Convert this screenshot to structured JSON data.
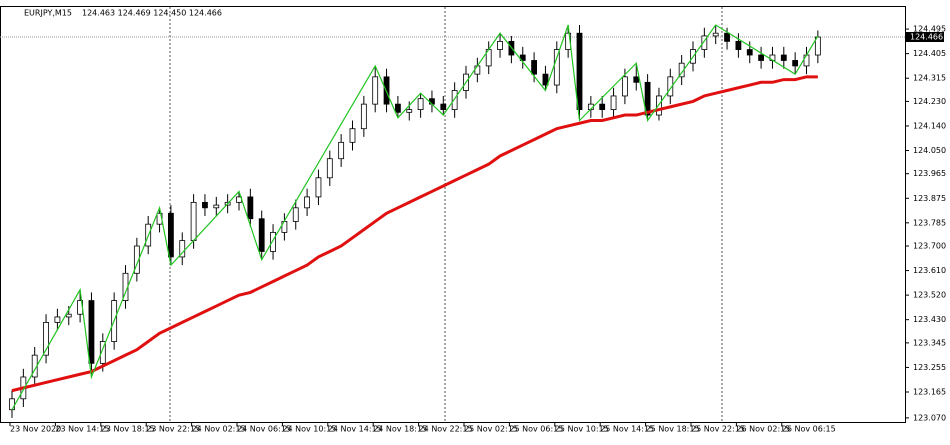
{
  "chart_data": {
    "type": "candlestick",
    "title": "EURJPY,M15",
    "subtitle": "124.463 124.469 124.450 124.466",
    "x_labels": [
      "23 Nov 2020",
      "23 Nov 14:15",
      "23 Nov 18:15",
      "23 Nov 22:15",
      "24 Nov 02:15",
      "24 Nov 06:15",
      "24 Nov 10:15",
      "24 Nov 14:15",
      "24 Nov 18:15",
      "24 Nov 22:15",
      "25 Nov 02:15",
      "25 Nov 06:15",
      "25 Nov 10:15",
      "25 Nov 14:15",
      "25 Nov 18:15",
      "25 Nov 22:15",
      "26 Nov 02:15",
      "26 Nov 06:15"
    ],
    "open": [
      123.1,
      123.14,
      123.22,
      123.3,
      123.42,
      123.44,
      123.45,
      123.5,
      123.27,
      123.35,
      123.5,
      123.6,
      123.7,
      123.78,
      123.82,
      123.66,
      123.72,
      123.86,
      123.84,
      123.85,
      123.86,
      123.88,
      123.8,
      123.68,
      123.75,
      123.79,
      123.84,
      123.88,
      123.95,
      124.02,
      124.08,
      124.13,
      124.22,
      124.32,
      124.22,
      124.19,
      124.2,
      124.24,
      124.22,
      124.2,
      124.27,
      124.33,
      124.36,
      124.42,
      124.45,
      124.4,
      124.38,
      124.33,
      124.29,
      124.42,
      124.48,
      124.2,
      124.22,
      124.2,
      124.25,
      124.32,
      124.3,
      124.18,
      124.25,
      124.32,
      124.37,
      124.42,
      124.47,
      124.48,
      124.45,
      124.42,
      124.4,
      124.38,
      124.4,
      124.38,
      124.36,
      124.4
    ],
    "high": [
      123.17,
      123.25,
      123.33,
      123.45,
      123.47,
      123.48,
      123.54,
      123.53,
      123.38,
      123.53,
      123.63,
      123.73,
      123.81,
      123.84,
      123.85,
      123.75,
      123.89,
      123.89,
      123.88,
      123.89,
      123.9,
      123.91,
      123.83,
      123.78,
      123.82,
      123.87,
      123.91,
      123.98,
      124.05,
      124.11,
      124.16,
      124.25,
      124.36,
      124.35,
      124.25,
      124.23,
      124.26,
      124.27,
      124.25,
      124.3,
      124.36,
      124.39,
      124.45,
      124.48,
      124.47,
      124.43,
      124.41,
      124.36,
      124.45,
      124.51,
      124.51,
      124.25,
      124.25,
      124.28,
      124.35,
      124.37,
      124.33,
      124.28,
      124.35,
      124.4,
      124.45,
      124.5,
      124.51,
      124.5,
      124.48,
      124.45,
      124.43,
      124.43,
      124.43,
      124.41,
      124.43,
      124.49
    ],
    "low": [
      123.07,
      123.11,
      123.19,
      123.27,
      123.39,
      123.41,
      123.42,
      123.22,
      123.24,
      123.32,
      123.47,
      123.57,
      123.67,
      123.75,
      123.63,
      123.63,
      123.69,
      123.81,
      123.81,
      123.82,
      123.83,
      123.77,
      123.65,
      123.65,
      123.72,
      123.76,
      123.81,
      123.85,
      123.92,
      123.99,
      124.05,
      124.1,
      124.19,
      124.19,
      124.17,
      124.16,
      124.17,
      124.19,
      124.18,
      124.17,
      124.24,
      124.3,
      124.33,
      124.39,
      124.37,
      124.35,
      124.3,
      124.27,
      124.26,
      124.39,
      124.16,
      124.17,
      124.17,
      124.17,
      124.22,
      124.27,
      124.16,
      124.16,
      124.22,
      124.29,
      124.34,
      124.39,
      124.44,
      124.42,
      124.39,
      124.37,
      124.35,
      124.35,
      124.35,
      124.33,
      124.33,
      124.37
    ],
    "close": [
      123.14,
      123.22,
      123.3,
      123.42,
      123.44,
      123.45,
      123.5,
      123.27,
      123.35,
      123.5,
      123.6,
      123.7,
      123.78,
      123.82,
      123.66,
      123.72,
      123.86,
      123.84,
      123.85,
      123.86,
      123.88,
      123.8,
      123.68,
      123.75,
      123.79,
      123.84,
      123.88,
      123.95,
      124.02,
      124.08,
      124.13,
      124.22,
      124.32,
      124.22,
      124.19,
      124.2,
      124.24,
      124.22,
      124.2,
      124.27,
      124.33,
      124.36,
      124.42,
      124.45,
      124.4,
      124.38,
      124.33,
      124.29,
      124.42,
      124.48,
      124.2,
      124.22,
      124.2,
      124.25,
      124.32,
      124.3,
      124.18,
      124.25,
      124.32,
      124.37,
      124.42,
      124.47,
      124.48,
      124.45,
      124.42,
      124.4,
      124.38,
      124.4,
      124.38,
      124.36,
      124.4,
      124.466
    ],
    "series": [
      {
        "color": "#e01010",
        "values": [
          123.17,
          123.18,
          123.19,
          123.2,
          123.21,
          123.22,
          123.23,
          123.24,
          123.26,
          123.28,
          123.3,
          123.32,
          123.35,
          123.38,
          123.4,
          123.42,
          123.44,
          123.46,
          123.48,
          123.5,
          123.52,
          123.53,
          123.55,
          123.57,
          123.59,
          123.61,
          123.63,
          123.66,
          123.68,
          123.7,
          123.73,
          123.76,
          123.79,
          123.82,
          123.84,
          123.86,
          123.88,
          123.9,
          123.92,
          123.94,
          123.96,
          123.98,
          124.0,
          124.03,
          124.05,
          124.07,
          124.09,
          124.11,
          124.13,
          124.14,
          124.15,
          124.16,
          124.16,
          124.17,
          124.18,
          124.18,
          124.19,
          124.2,
          124.21,
          124.22,
          124.23,
          124.25,
          124.26,
          124.27,
          124.28,
          124.29,
          124.3,
          124.3,
          124.31,
          124.31,
          124.32,
          124.32
        ]
      },
      {
        "color": "#22c422",
        "x": [
          0,
          6,
          7,
          13,
          14,
          20,
          22,
          32,
          34,
          36,
          38,
          43,
          47,
          49,
          50,
          55,
          56,
          62,
          69,
          71
        ],
        "values": [
          123.1,
          123.54,
          123.22,
          123.84,
          123.63,
          123.9,
          123.65,
          124.36,
          124.17,
          124.26,
          124.18,
          124.48,
          124.27,
          124.51,
          124.16,
          124.37,
          124.16,
          124.51,
          124.33,
          124.47
        ]
      }
    ],
    "current_price": 124.466,
    "ylim": [
      123.055,
      124.576
    ],
    "yticks": [
      {
        "value": 123.07,
        "label": "123.070"
      },
      123.165,
      123.255,
      123.345,
      {
        "value": 123.43,
        "label": "123.430"
      },
      {
        "value": 123.52,
        "label": "123.520"
      },
      {
        "value": 123.61,
        "label": "123.610"
      },
      {
        "value": 123.7,
        "label": "123.700"
      },
      123.785,
      123.875,
      123.965,
      {
        "value": 124.05,
        "label": "124.050"
      },
      {
        "value": 124.14,
        "label": "124.140"
      },
      {
        "value": 124.23,
        "label": "124.230"
      },
      124.315,
      124.405,
      124.495
    ]
  }
}
